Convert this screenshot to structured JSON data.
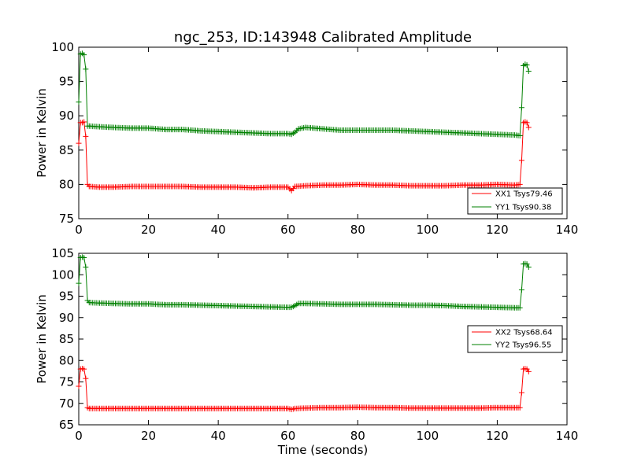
{
  "chart_data": [
    {
      "type": "line",
      "title": "ngc_253, ID:143948 Calibrated Amplitude",
      "xlabel": "",
      "ylabel": "Power in Kelvin",
      "xlim": [
        0,
        140
      ],
      "ylim": [
        75,
        100
      ],
      "xticks": [
        0,
        20,
        40,
        60,
        80,
        100,
        120,
        140
      ],
      "yticks": [
        75,
        80,
        85,
        90,
        95,
        100
      ],
      "legend_position": "lower-right",
      "series": [
        {
          "name": "XX1 Tsys79.46",
          "color": "#ff0000",
          "marker": "+",
          "points": [
            [
              0,
              86
            ],
            [
              0.5,
              89
            ],
            [
              1,
              89
            ],
            [
              1.5,
              89.1
            ],
            [
              2,
              87
            ],
            [
              2.5,
              80
            ],
            [
              3,
              79.7
            ],
            [
              6,
              79.6
            ],
            [
              10,
              79.6
            ],
            [
              15,
              79.7
            ],
            [
              20,
              79.7
            ],
            [
              25,
              79.7
            ],
            [
              30,
              79.7
            ],
            [
              35,
              79.6
            ],
            [
              40,
              79.6
            ],
            [
              45,
              79.6
            ],
            [
              50,
              79.5
            ],
            [
              55,
              79.6
            ],
            [
              60,
              79.6
            ],
            [
              61,
              79.1
            ],
            [
              62,
              79.7
            ],
            [
              65,
              79.8
            ],
            [
              70,
              79.9
            ],
            [
              75,
              79.9
            ],
            [
              80,
              80
            ],
            [
              85,
              79.9
            ],
            [
              90,
              79.9
            ],
            [
              95,
              79.8
            ],
            [
              100,
              79.8
            ],
            [
              105,
              79.8
            ],
            [
              110,
              79.9
            ],
            [
              115,
              79.9
            ],
            [
              120,
              80
            ],
            [
              125,
              79.9
            ],
            [
              126.5,
              80
            ],
            [
              127,
              83.5
            ],
            [
              127.5,
              89
            ],
            [
              128,
              89.1
            ],
            [
              128.5,
              89
            ],
            [
              129,
              88.3
            ]
          ]
        },
        {
          "name": "YY1 Tsys90.38",
          "color": "#008000",
          "marker": "+",
          "points": [
            [
              0,
              92
            ],
            [
              0.5,
              99
            ],
            [
              1,
              99.1
            ],
            [
              1.5,
              98.9
            ],
            [
              2,
              96.8
            ],
            [
              2.5,
              88.5
            ],
            [
              3,
              88.5
            ],
            [
              6,
              88.4
            ],
            [
              10,
              88.3
            ],
            [
              15,
              88.2
            ],
            [
              20,
              88.2
            ],
            [
              25,
              88
            ],
            [
              30,
              88
            ],
            [
              35,
              87.8
            ],
            [
              40,
              87.7
            ],
            [
              45,
              87.6
            ],
            [
              50,
              87.5
            ],
            [
              55,
              87.4
            ],
            [
              60,
              87.4
            ],
            [
              61,
              87.3
            ],
            [
              62,
              87.6
            ],
            [
              63,
              88.1
            ],
            [
              65,
              88.3
            ],
            [
              70,
              88.1
            ],
            [
              75,
              87.9
            ],
            [
              80,
              87.9
            ],
            [
              85,
              87.9
            ],
            [
              90,
              87.9
            ],
            [
              95,
              87.8
            ],
            [
              100,
              87.7
            ],
            [
              105,
              87.6
            ],
            [
              110,
              87.5
            ],
            [
              115,
              87.4
            ],
            [
              120,
              87.3
            ],
            [
              125,
              87.2
            ],
            [
              126.5,
              87.1
            ],
            [
              127,
              91.2
            ],
            [
              127.5,
              97.3
            ],
            [
              128,
              97.5
            ],
            [
              128.5,
              97.4
            ],
            [
              129,
              96.5
            ]
          ]
        }
      ]
    },
    {
      "type": "line",
      "title": "",
      "xlabel": "Time (seconds)",
      "ylabel": "Power in Kelvin",
      "xlim": [
        0,
        140
      ],
      "ylim": [
        65,
        105
      ],
      "xticks": [
        0,
        20,
        40,
        60,
        80,
        100,
        120,
        140
      ],
      "yticks": [
        65,
        70,
        75,
        80,
        85,
        90,
        95,
        100,
        105
      ],
      "legend_position": "center-right",
      "series": [
        {
          "name": "XX2 Tsys68.64",
          "color": "#ff0000",
          "marker": "+",
          "points": [
            [
              0,
              74
            ],
            [
              0.5,
              78
            ],
            [
              1,
              78.1
            ],
            [
              1.5,
              78
            ],
            [
              2,
              75.8
            ],
            [
              2.5,
              69
            ],
            [
              3,
              68.8
            ],
            [
              6,
              68.8
            ],
            [
              10,
              68.8
            ],
            [
              15,
              68.8
            ],
            [
              20,
              68.8
            ],
            [
              25,
              68.8
            ],
            [
              30,
              68.8
            ],
            [
              35,
              68.8
            ],
            [
              40,
              68.8
            ],
            [
              45,
              68.8
            ],
            [
              50,
              68.8
            ],
            [
              55,
              68.8
            ],
            [
              60,
              68.8
            ],
            [
              61,
              68.6
            ],
            [
              62,
              68.8
            ],
            [
              65,
              68.9
            ],
            [
              70,
              69
            ],
            [
              75,
              69
            ],
            [
              80,
              69.1
            ],
            [
              85,
              69
            ],
            [
              90,
              69
            ],
            [
              95,
              68.9
            ],
            [
              100,
              68.9
            ],
            [
              105,
              68.9
            ],
            [
              110,
              68.9
            ],
            [
              115,
              68.9
            ],
            [
              120,
              69
            ],
            [
              125,
              69
            ],
            [
              126.5,
              69
            ],
            [
              127,
              72.5
            ],
            [
              127.5,
              78
            ],
            [
              128,
              78.1
            ],
            [
              128.5,
              78
            ],
            [
              129,
              77.4
            ]
          ]
        },
        {
          "name": "YY2 Tsys96.55",
          "color": "#008000",
          "marker": "+",
          "points": [
            [
              0,
              98
            ],
            [
              0.5,
              104
            ],
            [
              1,
              104.1
            ],
            [
              1.5,
              104
            ],
            [
              2,
              101.8
            ],
            [
              2.5,
              94
            ],
            [
              3,
              93.5
            ],
            [
              6,
              93.4
            ],
            [
              10,
              93.3
            ],
            [
              15,
              93.2
            ],
            [
              20,
              93.2
            ],
            [
              25,
              93
            ],
            [
              30,
              93
            ],
            [
              35,
              92.9
            ],
            [
              40,
              92.8
            ],
            [
              45,
              92.7
            ],
            [
              50,
              92.6
            ],
            [
              55,
              92.5
            ],
            [
              60,
              92.4
            ],
            [
              61,
              92.4
            ],
            [
              62,
              92.8
            ],
            [
              63,
              93.3
            ],
            [
              65,
              93.3
            ],
            [
              70,
              93.2
            ],
            [
              75,
              93.1
            ],
            [
              80,
              93.1
            ],
            [
              85,
              93.1
            ],
            [
              90,
              93
            ],
            [
              95,
              92.9
            ],
            [
              100,
              92.9
            ],
            [
              105,
              92.8
            ],
            [
              110,
              92.6
            ],
            [
              115,
              92.5
            ],
            [
              120,
              92.4
            ],
            [
              125,
              92.3
            ],
            [
              126.5,
              92.3
            ],
            [
              127,
              96.5
            ],
            [
              127.5,
              102.5
            ],
            [
              128,
              102.6
            ],
            [
              128.5,
              102.5
            ],
            [
              129,
              101.8
            ]
          ]
        }
      ]
    }
  ]
}
